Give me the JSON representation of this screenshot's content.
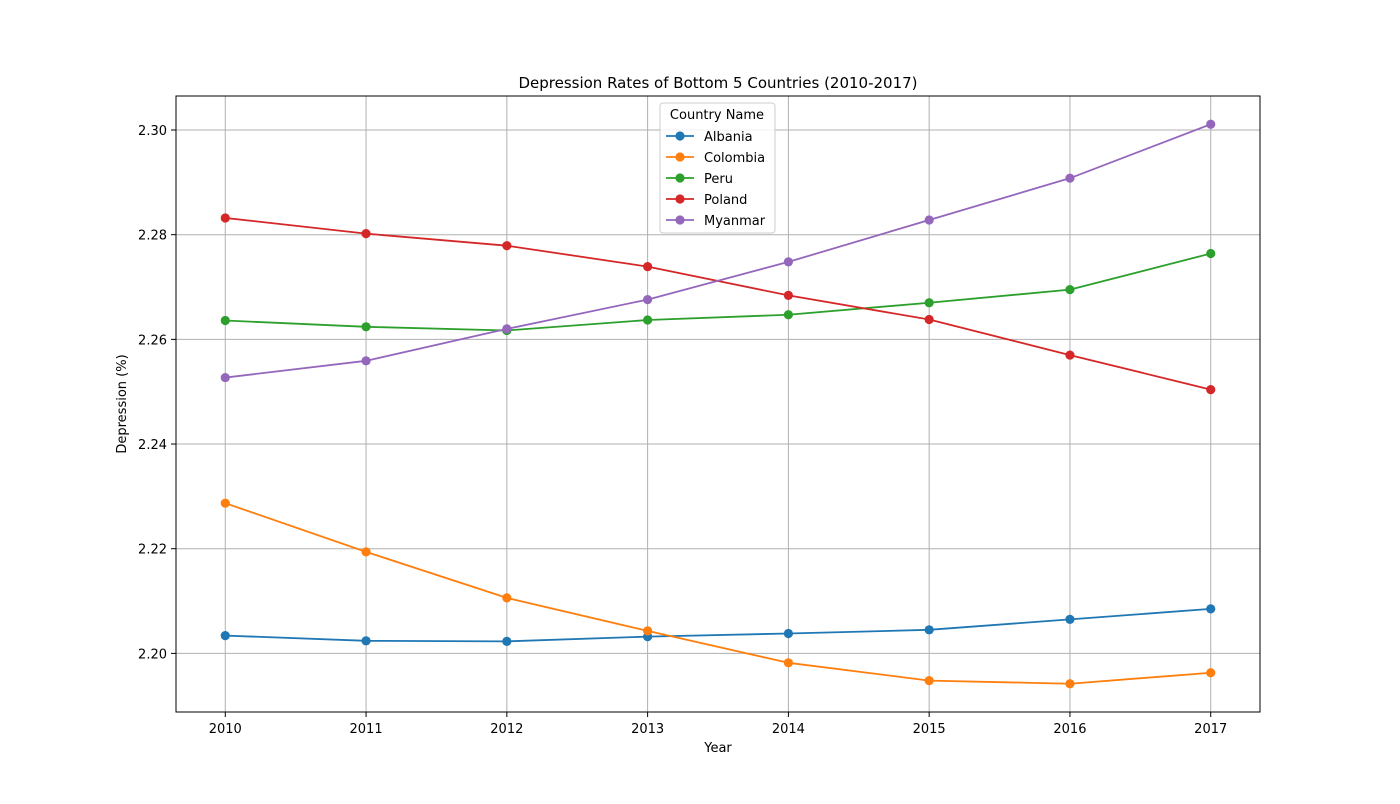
{
  "chart_data": {
    "type": "line",
    "title": "Depression Rates of Bottom 5 Countries (2010-2017)",
    "xlabel": "Year",
    "ylabel": "Depression (%)",
    "x": [
      2010,
      2011,
      2012,
      2013,
      2014,
      2015,
      2016,
      2017
    ],
    "x_ticks": [
      "2010",
      "2011",
      "2012",
      "2013",
      "2014",
      "2015",
      "2016",
      "2017"
    ],
    "xlim": [
      2009.65,
      2017.35
    ],
    "y_ticks": [
      2.2,
      2.22,
      2.24,
      2.26,
      2.28,
      2.3
    ],
    "y_tick_labels": [
      "2.20",
      "2.22",
      "2.24",
      "2.26",
      "2.28",
      "2.30"
    ],
    "ylim": [
      2.1888,
      2.3065
    ],
    "grid": true,
    "legend": {
      "title": "Country Name",
      "placement": "upper center"
    },
    "series": [
      {
        "name": "Albania",
        "color": "#1f77b4",
        "values": [
          2.2034,
          2.2024,
          2.2023,
          2.2032,
          2.2038,
          2.2045,
          2.2065,
          2.2085
        ]
      },
      {
        "name": "Colombia",
        "color": "#ff7f0e",
        "values": [
          2.2287,
          2.2194,
          2.2106,
          2.2043,
          2.1982,
          2.1948,
          2.1942,
          2.1963
        ]
      },
      {
        "name": "Peru",
        "color": "#2ca02c",
        "values": [
          2.2636,
          2.2624,
          2.2617,
          2.2637,
          2.2647,
          2.267,
          2.2695,
          2.2764
        ]
      },
      {
        "name": "Poland",
        "color": "#d62728",
        "values": [
          2.2832,
          2.2802,
          2.2779,
          2.2739,
          2.2684,
          2.2638,
          2.257,
          2.2504
        ]
      },
      {
        "name": "Myanmar",
        "color": "#9467bd",
        "values": [
          2.2527,
          2.2559,
          2.262,
          2.2676,
          2.2748,
          2.2828,
          2.2908,
          2.3011
        ]
      }
    ]
  }
}
